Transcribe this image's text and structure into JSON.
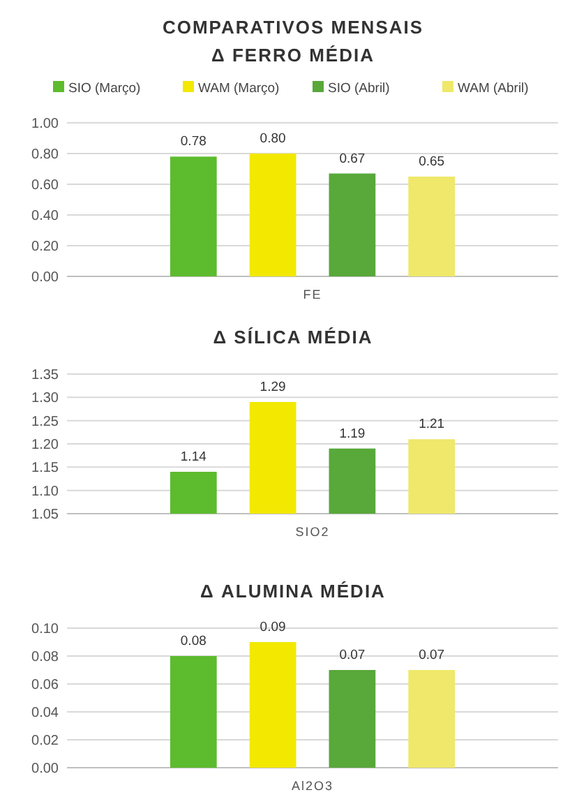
{
  "chart_data": [
    {
      "type": "bar",
      "title": "COMPARATIVOS MENSAIS",
      "subtitle": "Δ FERRO MÉDIA",
      "categories": [
        "FE"
      ],
      "series": [
        {
          "name": "SIO (Março)",
          "color": "#5dbb2e",
          "values": [
            0.78
          ]
        },
        {
          "name": "WAM (Março)",
          "color": "#f2e800",
          "values": [
            0.8
          ],
          "value_labels": [
            "0.80"
          ]
        },
        {
          "name": "SIO (Abril)",
          "color": "#58a83a",
          "values": [
            0.67
          ]
        },
        {
          "name": "WAM (Abril)",
          "color": "#efe86a",
          "values": [
            0.65
          ]
        }
      ],
      "ylim": [
        0,
        1
      ],
      "yticks": [
        {
          "value": 0,
          "label": "0.00"
        },
        {
          "value": 0.2,
          "label": "0.20"
        },
        {
          "value": 0.4,
          "label": "0.40"
        },
        {
          "value": 0.6,
          "label": "0.60"
        },
        {
          "value": 0.8,
          "label": "0.80"
        },
        {
          "value": 1,
          "label": "1.00"
        }
      ],
      "grid": "y",
      "legend": "top",
      "data_labels": true
    },
    {
      "type": "bar",
      "title": "Δ SÍLICA MÉDIA",
      "categories": [
        "SIO2"
      ],
      "series": [
        {
          "color": "#5dbb2e",
          "values": [
            1.14
          ]
        },
        {
          "color": "#f2e800",
          "values": [
            1.29
          ]
        },
        {
          "color": "#58a83a",
          "values": [
            1.19
          ]
        },
        {
          "color": "#efe86a",
          "values": [
            1.21
          ]
        }
      ],
      "ylim": [
        1.05,
        1.35
      ],
      "yticks": [
        1.05,
        {
          "value": 1.1,
          "label": "1.10"
        },
        1.15,
        {
          "value": 1.2,
          "label": "1.20"
        },
        1.25,
        {
          "value": 1.3,
          "label": "1.30"
        },
        1.35
      ],
      "grid": "y",
      "data_labels": true
    },
    {
      "type": "bar",
      "title": "Δ ALUMINA MÉDIA",
      "categories": [
        "Al2O3"
      ],
      "series": [
        {
          "color": "#5dbb2e",
          "values": [
            0.08
          ]
        },
        {
          "color": "#f2e800",
          "values": [
            0.09
          ]
        },
        {
          "color": "#58a83a",
          "values": [
            0.07
          ]
        },
        {
          "color": "#efe86a",
          "values": [
            0.07
          ]
        }
      ],
      "ylim": [
        0,
        0.1
      ],
      "yticks": [
        {
          "value": 0,
          "label": "0.00"
        },
        0.02,
        0.04,
        0.06,
        0.08,
        {
          "value": 0.1,
          "label": "0.10"
        }
      ],
      "grid": "y",
      "data_labels": true
    }
  ]
}
